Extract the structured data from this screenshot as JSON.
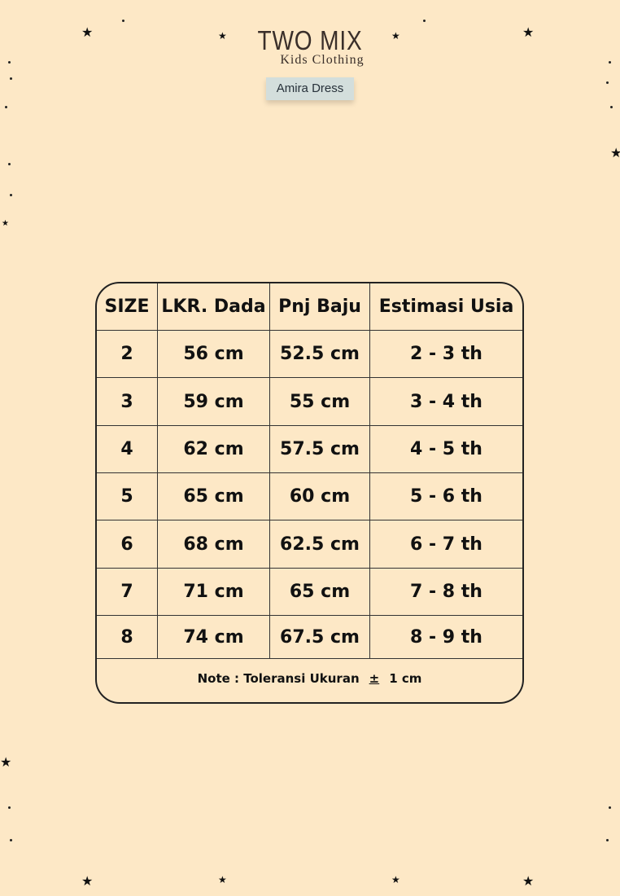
{
  "brand": {
    "name": "TWO MIX",
    "subtitle": "Kids Clothing"
  },
  "product": {
    "name": "Amira Dress"
  },
  "size_chart": {
    "headers": [
      "SIZE",
      "LKR. Dada",
      "Pnj Baju",
      "Estimasi Usia"
    ],
    "rows": [
      [
        "2",
        "56 cm",
        "52.5 cm",
        "2 - 3 th"
      ],
      [
        "3",
        "59 cm",
        "55 cm",
        "3 - 4 th"
      ],
      [
        "4",
        "62 cm",
        "57.5 cm",
        "4 - 5 th"
      ],
      [
        "5",
        "65 cm",
        "60 cm",
        "5 - 6 th"
      ],
      [
        "6",
        "68 cm",
        "62.5 cm",
        "6 - 7 th"
      ],
      [
        "7",
        "71 cm",
        "65 cm",
        "7 - 8 th"
      ],
      [
        "8",
        "74 cm",
        "67.5 cm",
        "8 - 9 th"
      ]
    ],
    "note": {
      "prefix": "Note : Toleransi Ukuran",
      "symbol": "±",
      "value": "1 cm"
    }
  },
  "colors": {
    "background": "#fde8c6",
    "tag": "#d3dedc",
    "text": "#111111"
  }
}
